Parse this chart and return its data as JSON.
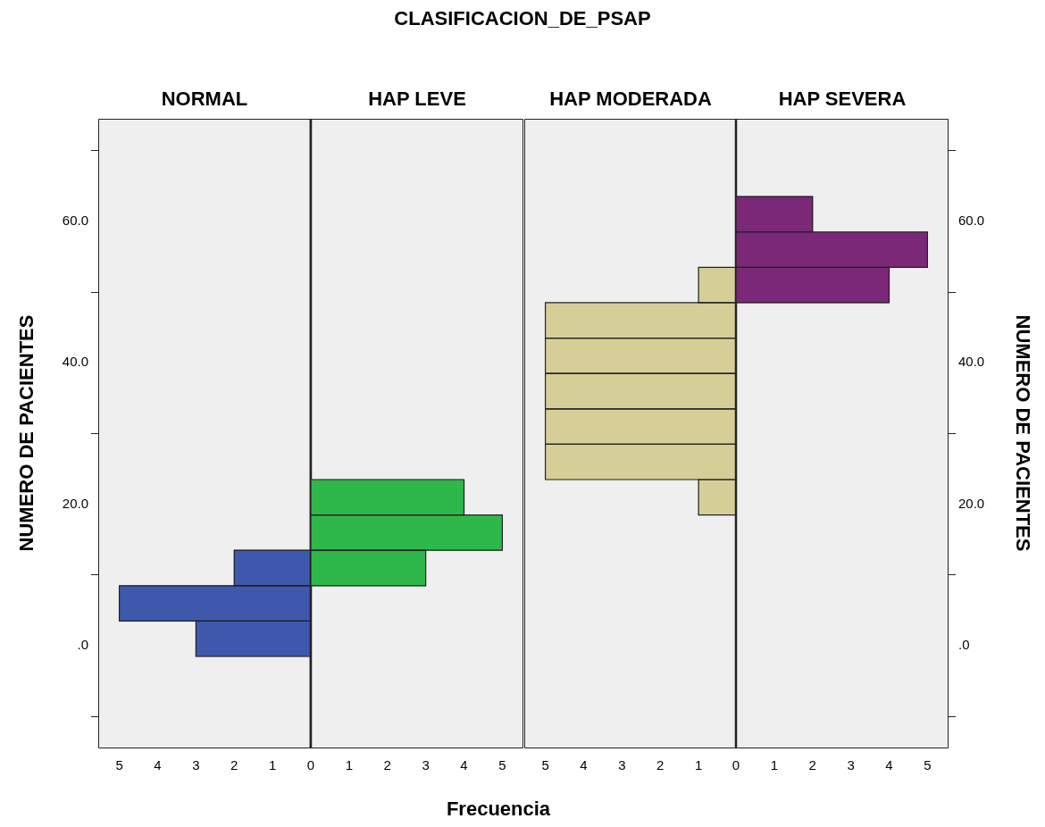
{
  "chart_data": [
    {
      "type": "histogram",
      "orientation": "horizontal",
      "legend_title": "CLASIFICACION_DE_PSAP",
      "title": "NORMAL",
      "ylabel": "NUMERO DE PACIENTES",
      "bins": [
        -1.5,
        3.5,
        8.5,
        13.5
      ],
      "values": [
        3,
        5,
        2
      ],
      "color": "#3e58ac",
      "xlim": [
        5.55,
        0
      ],
      "xticks": [
        5,
        4,
        3,
        2,
        1,
        {
          "value": 0,
          "label": null
        }
      ],
      "ylim": [
        -14.5,
        74.5
      ],
      "yticks": [
        {
          "value": 0,
          "label": ".0"
        },
        {
          "value": 20,
          "label": "20.0"
        },
        {
          "value": 40,
          "label": "40.0"
        },
        {
          "value": 60,
          "label": "60.0"
        }
      ]
    },
    {
      "type": "histogram",
      "orientation": "horizontal",
      "title": "HAP LEVE",
      "xlabel": "Frecuencia",
      "bins": [
        8.5,
        13.5,
        18.5,
        23.5
      ],
      "values": [
        3,
        5,
        4
      ],
      "color": "#2fb84a",
      "xlim": [
        0,
        5.55
      ],
      "xticks": [
        0,
        1,
        2,
        3,
        4,
        5
      ],
      "ylim": [
        -14.5,
        74.5
      ],
      "tick_labels": "x"
    },
    {
      "type": "histogram",
      "orientation": "horizontal",
      "title": "HAP MODERADA",
      "bins": [
        18.5,
        23.5,
        28.5,
        33.5,
        38.5,
        43.5,
        48.5,
        53.5
      ],
      "values": [
        1,
        5,
        5,
        5,
        5,
        5,
        1
      ],
      "color": "#d5cf97",
      "xlim": [
        5.55,
        0
      ],
      "xticks": [
        5,
        4,
        3,
        2,
        1,
        {
          "value": 0,
          "label": null
        }
      ],
      "ylim": [
        -14.5,
        74.5
      ],
      "tick_labels": "x"
    },
    {
      "type": "histogram",
      "orientation": "horizontal",
      "title": "HAP SEVERA",
      "ylabel": "NUMERO DE PACIENTES",
      "bins": [
        48.5,
        53.5,
        58.5,
        63.5
      ],
      "values": [
        4,
        5,
        2
      ],
      "color": "#7c2878",
      "xlim": [
        0,
        5.55
      ],
      "xticks": [
        0,
        1,
        2,
        3,
        4,
        5
      ],
      "ylim": [
        -14.5,
        74.5
      ],
      "yticks": [
        {
          "value": 0,
          "label": ".0"
        },
        {
          "value": 20,
          "label": "20.0"
        },
        {
          "value": 40,
          "label": "40.0"
        },
        {
          "value": 60,
          "label": "60.0"
        }
      ]
    }
  ]
}
